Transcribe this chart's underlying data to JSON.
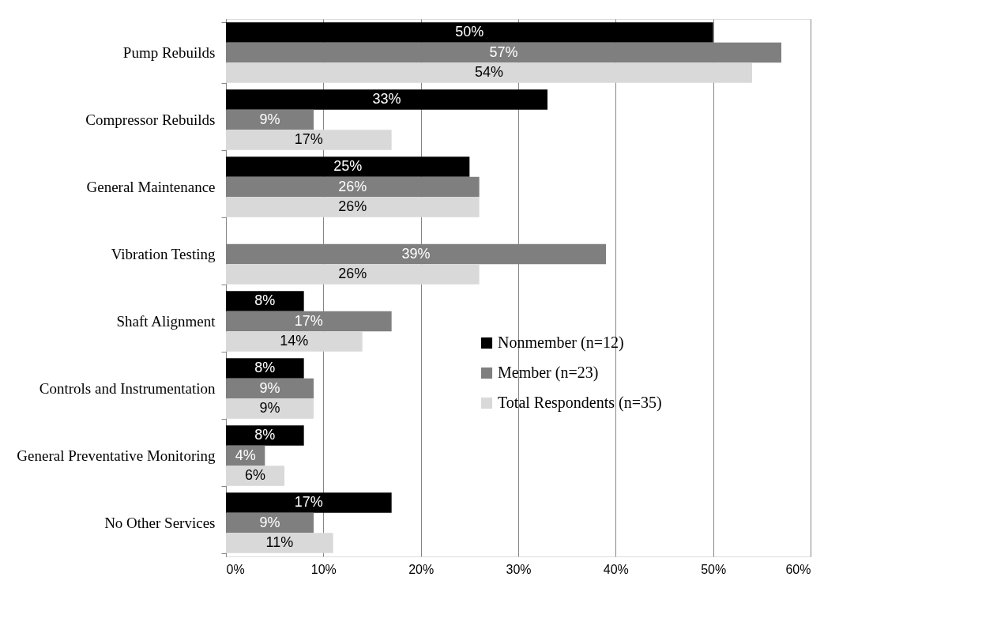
{
  "chart_data": {
    "type": "bar",
    "orientation": "horizontal",
    "categories": [
      "Pump Rebuilds",
      "Compressor Rebuilds",
      "General Maintenance",
      "Vibration Testing",
      "Shaft Alignment",
      "Controls and Instrumentation",
      "General Preventative Monitoring",
      "No Other Services"
    ],
    "series": [
      {
        "name": "Nonmember (n=12)",
        "color": "#000000",
        "values": [
          50,
          33,
          25,
          null,
          8,
          8,
          8,
          17
        ],
        "value_labels": [
          "50%",
          "33%",
          "25%",
          null,
          "8%",
          "8%",
          "8%",
          "17%"
        ]
      },
      {
        "name": "Member (n=23)",
        "color": "#7f7f7f",
        "values": [
          57,
          9,
          26,
          39,
          17,
          9,
          4,
          9
        ],
        "value_labels": [
          "57%",
          "9%",
          "26%",
          "39%",
          "17%",
          "9%",
          "4%",
          "9%"
        ]
      },
      {
        "name": "Total Respondents (n=35)",
        "color": "#d9d9d9",
        "values": [
          54,
          17,
          26,
          26,
          14,
          9,
          6,
          11
        ],
        "value_labels": [
          "54%",
          "17%",
          "26%",
          "26%",
          "14%",
          "9%",
          "6%",
          "11%"
        ]
      }
    ],
    "xlim": [
      0,
      60
    ],
    "xticks": [
      {
        "value": 0,
        "label": "0%"
      },
      {
        "value": 10,
        "label": "10%"
      },
      {
        "value": 20,
        "label": "20%"
      },
      {
        "value": 30,
        "label": "30%"
      },
      {
        "value": 40,
        "label": "40%"
      },
      {
        "value": 50,
        "label": "50%"
      },
      {
        "value": 60,
        "label": "60%"
      }
    ],
    "grid": "x",
    "legend": "right"
  }
}
